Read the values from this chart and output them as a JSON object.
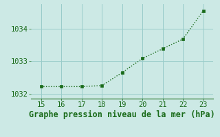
{
  "x": [
    15,
    16,
    17,
    18,
    19,
    20,
    21,
    22,
    23
  ],
  "y": [
    1032.22,
    1032.22,
    1032.22,
    1032.25,
    1032.65,
    1033.08,
    1033.38,
    1033.68,
    1034.55
  ],
  "xlim": [
    14.5,
    23.5
  ],
  "ylim": [
    1031.85,
    1034.75
  ],
  "xticks": [
    15,
    16,
    17,
    18,
    19,
    20,
    21,
    22,
    23
  ],
  "yticks": [
    1032,
    1033,
    1034
  ],
  "xlabel": "Graphe pression niveau de la mer (hPa)",
  "line_color": "#1a6b1a",
  "marker_color": "#1a6b1a",
  "bg_color": "#cce9e5",
  "grid_color": "#99ccca",
  "tick_label_fontsize": 7.5,
  "xlabel_fontsize": 8.5
}
